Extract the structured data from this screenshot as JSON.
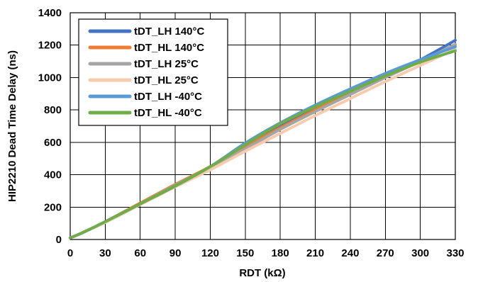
{
  "chart_data": {
    "type": "line",
    "title": "",
    "xlabel": "RDT (kΩ)",
    "ylabel": "HIP2210 Dead Time Delay (ns)",
    "xlim": [
      0,
      330
    ],
    "ylim": [
      0,
      1400
    ],
    "x_ticks": [
      "0",
      "30",
      "60",
      "90",
      "120",
      "150",
      "180",
      "210",
      "240",
      "270",
      "300",
      "330"
    ],
    "y_ticks": [
      "0",
      "200",
      "400",
      "600",
      "800",
      "1000",
      "1200",
      "1400"
    ],
    "grid": true,
    "legend_position": "top-left",
    "series": [
      {
        "name": "tDT_LH 140°C",
        "color": "#4472C4",
        "x": [
          0,
          10,
          30,
          60,
          90,
          120,
          150,
          180,
          210,
          240,
          270,
          300,
          330
        ],
        "y": [
          10,
          40,
          110,
          220,
          330,
          450,
          580,
          700,
          810,
          910,
          1010,
          1110,
          1230
        ]
      },
      {
        "name": "tDT_HL 140°C",
        "color": "#ED7D31",
        "x": [
          0,
          10,
          30,
          60,
          90,
          120,
          150,
          180,
          210,
          240,
          270,
          300,
          330
        ],
        "y": [
          10,
          40,
          110,
          225,
          340,
          450,
          570,
          690,
          800,
          905,
          1005,
          1100,
          1200
        ]
      },
      {
        "name": "tDT_LH 25°C",
        "color": "#A5A5A5",
        "x": [
          0,
          10,
          30,
          60,
          90,
          120,
          150,
          180,
          210,
          240,
          270,
          300,
          330
        ],
        "y": [
          10,
          40,
          110,
          220,
          335,
          445,
          560,
          680,
          790,
          895,
          1000,
          1100,
          1205
        ]
      },
      {
        "name": "tDT_HL 25°C",
        "color": "#F8CBAD",
        "x": [
          0,
          10,
          30,
          60,
          90,
          120,
          150,
          180,
          210,
          240,
          270,
          300,
          330
        ],
        "y": [
          10,
          40,
          105,
          215,
          325,
          430,
          545,
          655,
          765,
          870,
          975,
          1075,
          1175
        ]
      },
      {
        "name": "tDT_LH -40°C",
        "color": "#5B9BD5",
        "x": [
          0,
          10,
          30,
          60,
          90,
          120,
          150,
          180,
          210,
          240,
          270,
          300,
          330
        ],
        "y": [
          10,
          40,
          110,
          220,
          330,
          450,
          595,
          720,
          830,
          930,
          1025,
          1110,
          1190
        ]
      },
      {
        "name": "tDT_HL -40°C",
        "color": "#70AD47",
        "x": [
          0,
          10,
          30,
          60,
          90,
          120,
          150,
          180,
          210,
          240,
          270,
          300,
          330
        ],
        "y": [
          10,
          40,
          110,
          220,
          330,
          450,
          585,
          715,
          820,
          915,
          1010,
          1095,
          1165
        ]
      }
    ]
  }
}
